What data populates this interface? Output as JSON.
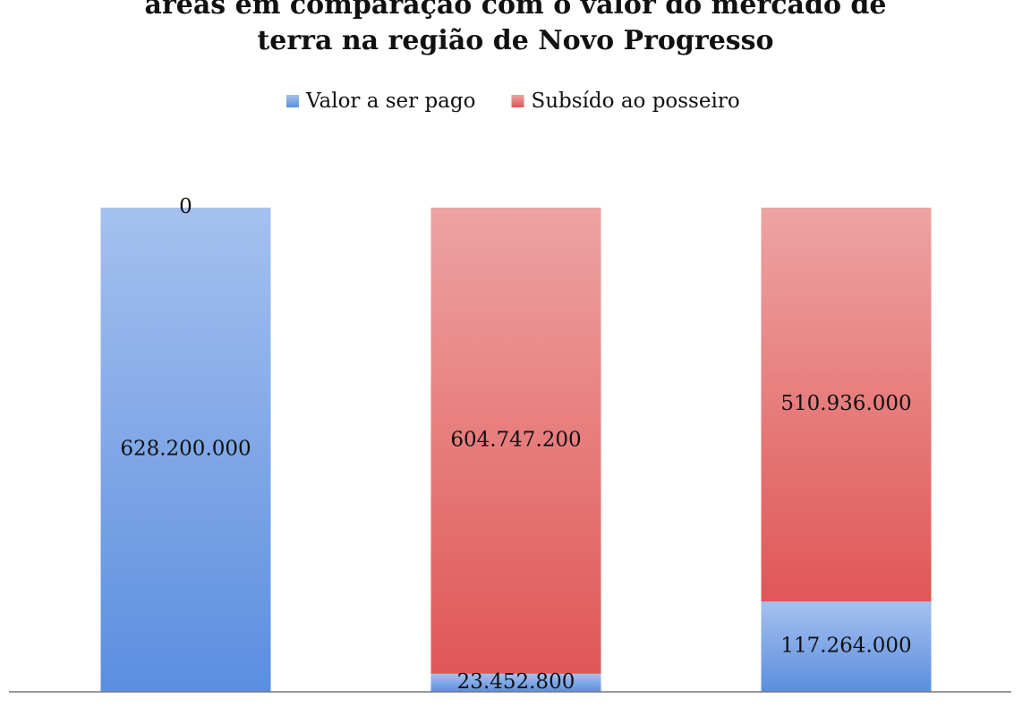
{
  "chart_data": {
    "type": "stacked-bar",
    "title": "áreas em comparação com o valor do mercado de terra na região de Novo Progresso",
    "categories": [
      null,
      null,
      null
    ],
    "ylim": [
      0,
      628200000
    ],
    "legend": "top",
    "series": [
      {
        "name": "Valor a ser pago",
        "color": "#5b8ee0",
        "values": [
          628200000,
          23452800,
          117264000
        ],
        "value_labels": [
          "628.200.000",
          "23.452.800",
          "117.264.000"
        ]
      },
      {
        "name": "Subsído ao posseiro",
        "color": "#e05757",
        "values": [
          0,
          604747200,
          510936000
        ],
        "value_labels": [
          "0",
          "604.747.200",
          "510.936.000"
        ]
      }
    ]
  }
}
